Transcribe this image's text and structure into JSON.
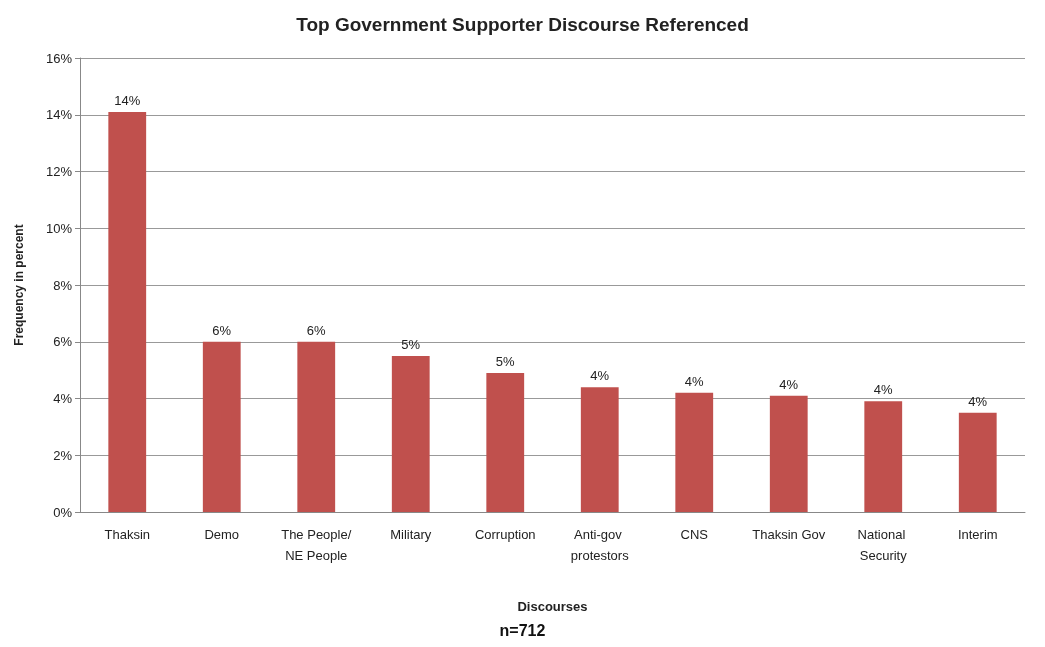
{
  "chart_data": {
    "type": "bar",
    "title": "Top Government Supporter Discourse Referenced",
    "xlabel": "Discourses",
    "ylabel": "Frequency in percent",
    "annotations": [
      "n=712"
    ],
    "categories": [
      "Thaksin",
      "Demo",
      "The People/NE People",
      "Military",
      "Corruption",
      "Anti-gov protestors",
      "CNS",
      "Thaksin Gov",
      "National Security",
      "Interim"
    ],
    "values": [
      14.1,
      6.0,
      6.0,
      5.5,
      4.9,
      4.4,
      4.2,
      4.1,
      3.9,
      3.5
    ],
    "value_labels": [
      "14%",
      "6%",
      "6%",
      "5%",
      "5%",
      "4%",
      "4%",
      "4%",
      "4%",
      "4%"
    ],
    "color": "#c0504d",
    "ylim": [
      0,
      16
    ],
    "yticks": [
      {
        "value": 0,
        "label": "0%"
      },
      {
        "value": 2,
        "label": "2%"
      },
      {
        "value": 4,
        "label": "4%"
      },
      {
        "value": 6,
        "label": "6%"
      },
      {
        "value": 8,
        "label": "8%"
      },
      {
        "value": 10,
        "label": "10%"
      },
      {
        "value": 12,
        "label": "12%"
      },
      {
        "value": 14,
        "label": "14%"
      },
      {
        "value": 16,
        "label": "16%"
      }
    ],
    "grid": "y"
  }
}
